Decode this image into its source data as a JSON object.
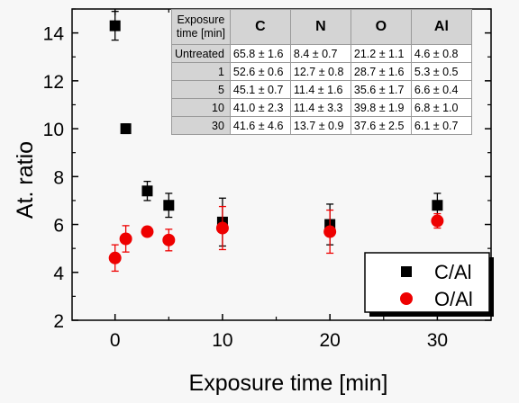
{
  "chart_data": {
    "type": "scatter",
    "xlabel": "Exposure time [min]",
    "ylabel": "At. ratio",
    "xlim": [
      -4,
      35
    ],
    "ylim": [
      2,
      15
    ],
    "xticks": [
      0,
      10,
      20,
      30
    ],
    "xtick_labels": [
      "0",
      "10",
      "20",
      "30"
    ],
    "yticks": [
      2,
      4,
      6,
      8,
      10,
      12,
      14
    ],
    "ytick_labels": [
      "2",
      "4",
      "6",
      "8",
      "10",
      "12",
      "14"
    ],
    "grid": false,
    "legend_position": "bottom-right",
    "series": [
      {
        "name": "C/Al",
        "marker": "square",
        "color": "#000000",
        "points": [
          {
            "x": 0,
            "y": 14.3,
            "err": 0.6
          },
          {
            "x": 1,
            "y": 10.0,
            "err": 0.2
          },
          {
            "x": 3,
            "y": 7.4,
            "err": 0.4
          },
          {
            "x": 5,
            "y": 6.8,
            "err": 0.5
          },
          {
            "x": 10,
            "y": 6.1,
            "err": 1.0
          },
          {
            "x": 20,
            "y": 6.0,
            "err": 0.85
          },
          {
            "x": 30,
            "y": 6.8,
            "err": 0.5
          }
        ]
      },
      {
        "name": "O/Al",
        "marker": "circle",
        "color": "#ee0000",
        "points": [
          {
            "x": 0,
            "y": 4.6,
            "err": 0.55
          },
          {
            "x": 1,
            "y": 5.4,
            "err": 0.55
          },
          {
            "x": 3,
            "y": 5.7,
            "err": 0.1
          },
          {
            "x": 5,
            "y": 5.35,
            "err": 0.45
          },
          {
            "x": 10,
            "y": 5.85,
            "err": 0.9
          },
          {
            "x": 20,
            "y": 5.7,
            "err": 0.9
          },
          {
            "x": 30,
            "y": 6.15,
            "err": 0.3
          }
        ]
      }
    ]
  },
  "table": {
    "header_label_line1": "Exposure",
    "header_label_line2": "time [min]",
    "columns": [
      "C",
      "N",
      "O",
      "Al"
    ],
    "rows": [
      {
        "label": "Untreated",
        "cells": [
          "65.8 ± 1.6",
          "8.4 ± 0.7",
          "21.2 ± 1.1",
          "4.6 ± 0.8"
        ]
      },
      {
        "label": "1",
        "cells": [
          "52.6 ± 0.6",
          "12.7 ± 0.8",
          "28.7 ± 1.6",
          "5.3 ± 0.5"
        ]
      },
      {
        "label": "5",
        "cells": [
          "45.1 ± 0.7",
          "11.4 ± 1.6",
          "35.6 ± 1.7",
          "6.6 ± 0.4"
        ]
      },
      {
        "label": "10",
        "cells": [
          "41.0 ± 2.3",
          "11.4 ± 3.3",
          "39.8 ± 1.9",
          "6.8 ± 1.0"
        ]
      },
      {
        "label": "30",
        "cells": [
          "41.6 ± 4.6",
          "13.7 ± 0.9",
          "37.6 ± 2.5",
          "6.1 ± 0.7"
        ]
      }
    ]
  }
}
